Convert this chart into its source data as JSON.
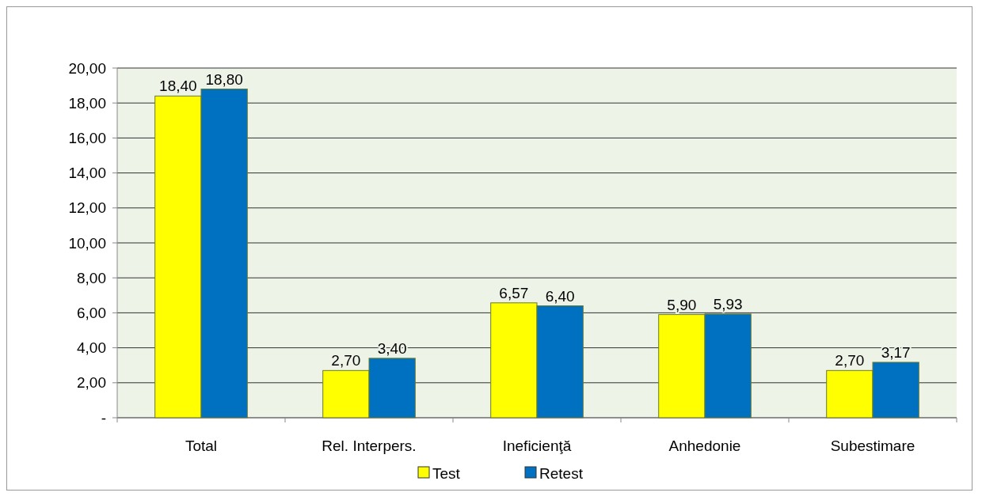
{
  "chart_data": {
    "type": "bar",
    "categories": [
      "Total",
      "Rel. Interpers.",
      "Ineficienţă",
      "Anhedonie",
      "Subestimare"
    ],
    "series": [
      {
        "name": "Test",
        "color": "#ffff00",
        "values": [
          18.4,
          2.7,
          6.57,
          5.9,
          2.7
        ],
        "value_labels": [
          "18,40",
          "2,70",
          "6,57",
          "5,90",
          "2,70"
        ]
      },
      {
        "name": "Retest",
        "color": "#0070c0",
        "values": [
          18.8,
          3.4,
          6.4,
          5.93,
          3.17
        ],
        "value_labels": [
          "18,80",
          "3,40",
          "6,40",
          "5,93",
          "3,17"
        ]
      }
    ],
    "ylim": [
      0,
      20
    ],
    "yticks": [
      {
        "value": 0,
        "label": "-"
      },
      {
        "value": 2,
        "label": "2,00"
      },
      {
        "value": 4,
        "label": "4,00"
      },
      {
        "value": 6,
        "label": "6,00"
      },
      {
        "value": 8,
        "label": "8,00"
      },
      {
        "value": 10,
        "label": "10,00"
      },
      {
        "value": 12,
        "label": "12,00"
      },
      {
        "value": 14,
        "label": "14,00"
      },
      {
        "value": 16,
        "label": "16,00"
      },
      {
        "value": 18,
        "label": "18,00"
      },
      {
        "value": 20,
        "label": "20,00"
      }
    ],
    "grid": "y",
    "legend": "bottom"
  }
}
